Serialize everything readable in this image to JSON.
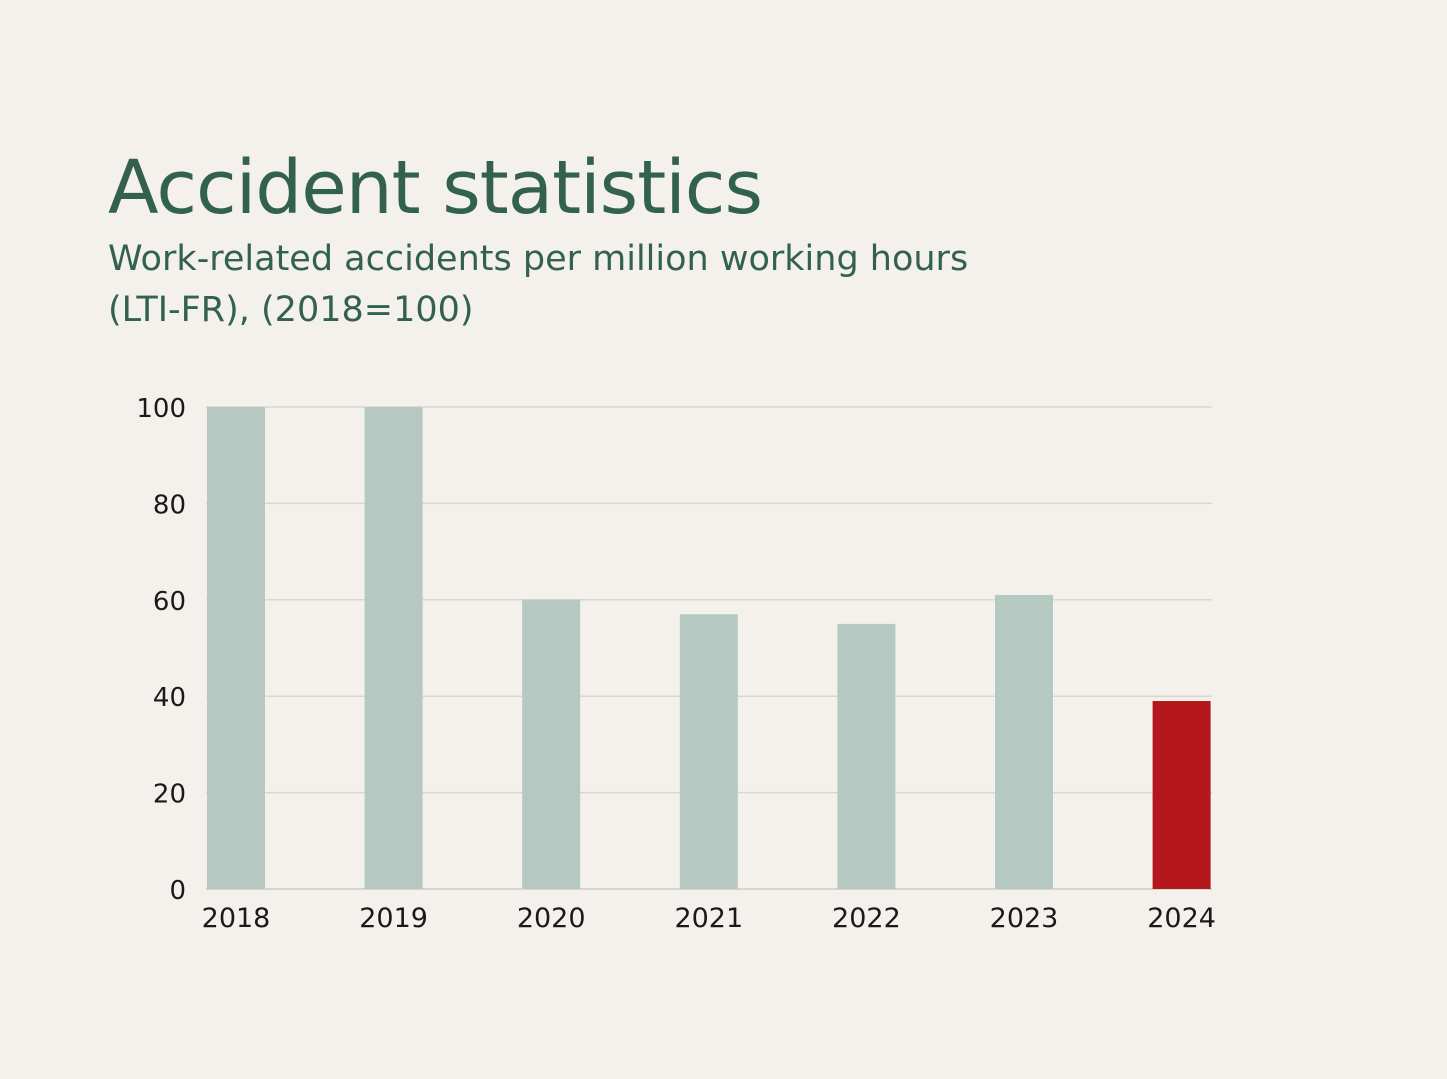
{
  "header": {
    "title": "Accident statistics",
    "subtitle_line1": "Work-related accidents per million working hours",
    "subtitle_line2": "(LTI-FR), (2018=100)"
  },
  "colors": {
    "background": "#f4f1ec",
    "heading": "#336150",
    "bar": "#b6c8c2",
    "highlight_bar": "#b4181c",
    "grid": "#d9d6d1",
    "axis_text": "#1a1a1a"
  },
  "chart_data": {
    "type": "bar",
    "title": "Accident statistics",
    "subtitle": "Work-related accidents per million working hours (LTI-FR), (2018=100)",
    "xlabel": "",
    "ylabel": "",
    "categories": [
      "2018",
      "2019",
      "2020",
      "2021",
      "2022",
      "2023",
      "2024"
    ],
    "values": [
      100,
      100,
      60,
      57,
      55,
      61,
      39
    ],
    "highlight_category": "2024",
    "ylim": [
      0,
      100
    ],
    "yticks": [
      0,
      20,
      40,
      60,
      80,
      100
    ],
    "grid": true,
    "legend": "none"
  }
}
